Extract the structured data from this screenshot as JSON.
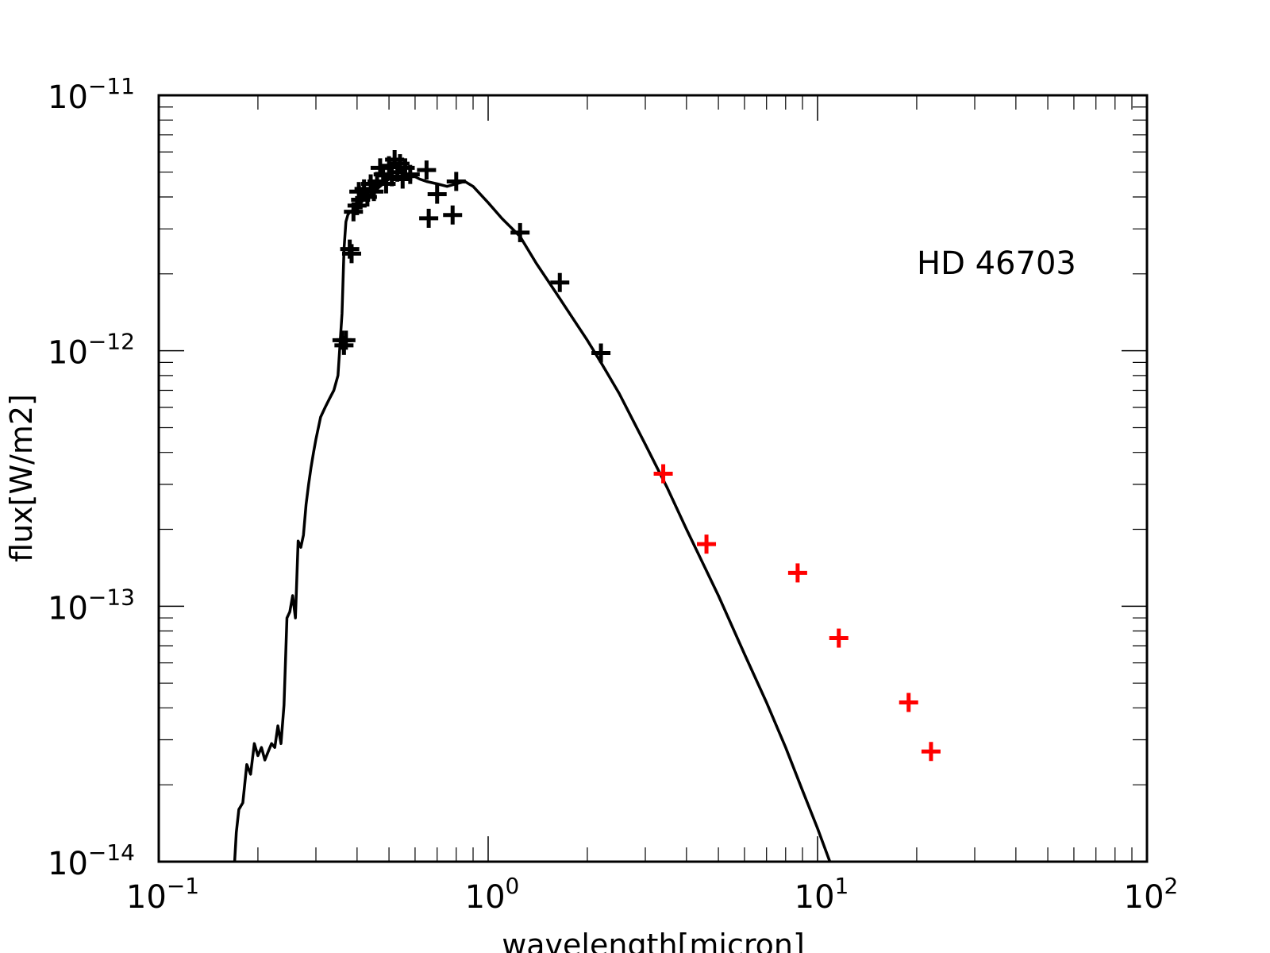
{
  "chart_data": {
    "type": "scatter",
    "title": "",
    "xlabel": "wavelength[micron]",
    "ylabel": "flux[W/m2]",
    "xscale": "log",
    "yscale": "log",
    "xlim": [
      0.1,
      100
    ],
    "ylim": [
      1e-14,
      1e-11
    ],
    "grid": false,
    "annotation": "HD 46703",
    "x_tick_labels": [
      {
        "value": 0.1,
        "base": "10",
        "exp": "−1"
      },
      {
        "value": 1,
        "base": "10",
        "exp": "0"
      },
      {
        "value": 10,
        "base": "10",
        "exp": "1"
      },
      {
        "value": 100,
        "base": "10",
        "exp": "2"
      }
    ],
    "y_tick_labels": [
      {
        "value": 1e-11,
        "base": "10",
        "exp": "−11"
      },
      {
        "value": 1e-12,
        "base": "10",
        "exp": "−12"
      },
      {
        "value": 1e-13,
        "base": "10",
        "exp": "−13"
      },
      {
        "value": 1e-14,
        "base": "10",
        "exp": "−14"
      }
    ],
    "series": [
      {
        "kind": "line",
        "color": "#000000",
        "x": [
          0.17,
          0.172,
          0.175,
          0.18,
          0.185,
          0.19,
          0.195,
          0.2,
          0.205,
          0.21,
          0.215,
          0.22,
          0.225,
          0.23,
          0.235,
          0.24,
          0.245,
          0.25,
          0.255,
          0.26,
          0.265,
          0.27,
          0.275,
          0.28,
          0.285,
          0.29,
          0.295,
          0.3,
          0.31,
          0.32,
          0.33,
          0.34,
          0.35,
          0.36,
          0.365,
          0.37,
          0.375,
          0.38,
          0.385,
          0.39,
          0.4,
          0.41,
          0.42,
          0.43,
          0.44,
          0.45,
          0.46,
          0.47,
          0.48,
          0.49,
          0.5,
          0.52,
          0.54,
          0.56,
          0.58,
          0.6,
          0.62,
          0.65,
          0.7,
          0.75,
          0.8,
          0.85,
          0.9,
          1.0,
          1.1,
          1.25,
          1.4,
          1.6,
          1.8,
          2.0,
          2.2,
          2.5,
          3.0,
          3.5,
          4.0,
          5.0,
          6.0,
          7.0,
          8.0,
          9.0,
          10.0,
          10.9
        ],
        "y": [
          1e-14,
          1.3e-14,
          1.6e-14,
          1.7e-14,
          2.4e-14,
          2.2e-14,
          2.9e-14,
          2.6e-14,
          2.8e-14,
          2.5e-14,
          2.7e-14,
          2.9e-14,
          2.8e-14,
          3.4e-14,
          2.9e-14,
          4.1e-14,
          9e-14,
          9.5e-14,
          1.1e-13,
          9e-14,
          1.8e-13,
          1.7e-13,
          1.9e-13,
          2.5e-13,
          3e-13,
          3.5e-13,
          4e-13,
          4.5e-13,
          5.5e-13,
          6e-13,
          6.5e-13,
          7e-13,
          8e-13,
          1.4e-12,
          2.5e-12,
          3.2e-12,
          3.4e-12,
          3.5e-12,
          3.5e-12,
          3.6e-12,
          3.7e-12,
          3.8e-12,
          3.9e-12,
          4e-12,
          4.1e-12,
          4.2e-12,
          4.3e-12,
          4.4e-12,
          4.5e-12,
          4.6e-12,
          4.7e-12,
          4.7e-12,
          4.8e-12,
          4.8e-12,
          4.8e-12,
          4.8e-12,
          4.7e-12,
          4.6e-12,
          4.5e-12,
          4.4e-12,
          4.5e-12,
          4.6e-12,
          4.4e-12,
          3.8e-12,
          3.3e-12,
          2.8e-12,
          2.2e-12,
          1.7e-12,
          1.35e-12,
          1.1e-12,
          9e-13,
          6.8e-13,
          4.3e-13,
          2.9e-13,
          2e-13,
          1.1e-13,
          6.5e-14,
          4.2e-14,
          2.8e-14,
          1.9e-14,
          1.35e-14,
          1e-14
        ]
      },
      {
        "kind": "points",
        "color": "#000000",
        "x": [
          0.36,
          0.365,
          0.37,
          0.38,
          0.385,
          0.39,
          0.4,
          0.405,
          0.41,
          0.42,
          0.43,
          0.44,
          0.45,
          0.46,
          0.47,
          0.48,
          0.49,
          0.5,
          0.51,
          0.52,
          0.53,
          0.54,
          0.55,
          0.56,
          0.58,
          0.65,
          0.66,
          0.7,
          0.78,
          0.8,
          1.25,
          1.65,
          2.2
        ],
        "y": [
          1.1e-12,
          1.05e-12,
          1.1e-12,
          2.5e-12,
          2.4e-12,
          3.5e-12,
          3.7e-12,
          4.2e-12,
          3.9e-12,
          4.3e-12,
          4e-12,
          4.5e-12,
          4.2e-12,
          4.6e-12,
          5.2e-12,
          4.9e-12,
          4.5e-12,
          5.3e-12,
          4.8e-12,
          5.6e-12,
          5e-12,
          5.4e-12,
          4.7e-12,
          5.2e-12,
          4.9e-12,
          5.1e-12,
          3.3e-12,
          4.1e-12,
          3.4e-12,
          4.6e-12,
          2.9e-12,
          1.85e-12,
          9.8e-13
        ]
      },
      {
        "kind": "points",
        "color": "#ff0000",
        "x": [
          3.4,
          4.6,
          8.7,
          11.6,
          18.9,
          22.1
        ],
        "y": [
          3.3e-13,
          1.75e-13,
          1.35e-13,
          7.5e-14,
          4.2e-14,
          2.7e-14
        ]
      }
    ]
  }
}
